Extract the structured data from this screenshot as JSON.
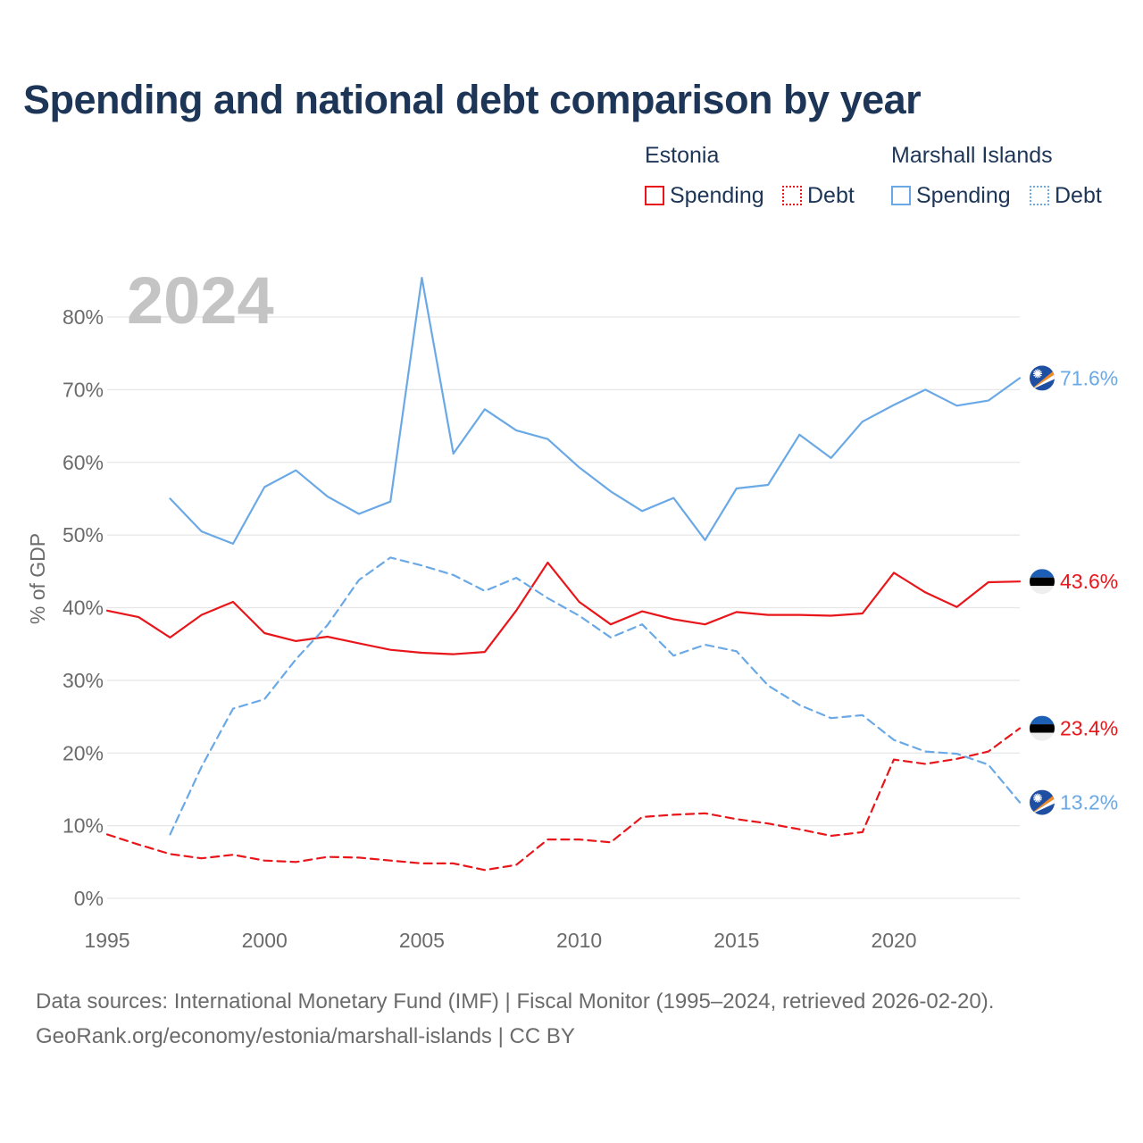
{
  "title": "Spending and national debt comparison by year",
  "legend": {
    "groups": [
      {
        "country": "Estonia",
        "items": [
          {
            "label": "Spending"
          },
          {
            "label": "Debt"
          }
        ]
      },
      {
        "country": "Marshall Islands",
        "items": [
          {
            "label": "Spending"
          },
          {
            "label": "Debt"
          }
        ]
      }
    ]
  },
  "colors": {
    "estonia": "#e8161a",
    "marshall_islands": "#6aa9e6"
  },
  "source_line1": "Data sources: International Monetary Fund (IMF) | Fiscal Monitor (1995–2024, retrieved 2026-02-20).",
  "source_line2": "GeoRank.org/economy/estonia/marshall-islands | CC BY",
  "chart_data": {
    "type": "line",
    "year_watermark": "2024",
    "ylabel": "% of GDP",
    "xlabel": "",
    "xlim": [
      1995,
      2024
    ],
    "ylim": [
      0,
      80
    ],
    "x_ticks": [
      1995,
      2000,
      2005,
      2010,
      2015,
      2020
    ],
    "y_ticks": [
      0,
      10,
      20,
      30,
      40,
      50,
      60,
      70,
      80
    ],
    "y_tick_labels": [
      "0%",
      "10%",
      "20%",
      "30%",
      "40%",
      "50%",
      "60%",
      "70%",
      "80%"
    ],
    "series": [
      {
        "name": "Estonia Spending",
        "country": "Estonia",
        "metric": "Spending",
        "style": "solid",
        "color": "#e8161a",
        "end_label": "43.6%",
        "points": [
          [
            1995,
            39.6
          ],
          [
            1996,
            38.7
          ],
          [
            1997,
            35.9
          ],
          [
            1998,
            39.0
          ],
          [
            1999,
            40.8
          ],
          [
            2000,
            36.5
          ],
          [
            2001,
            35.4
          ],
          [
            2002,
            36.0
          ],
          [
            2003,
            35.1
          ],
          [
            2004,
            34.2
          ],
          [
            2005,
            33.8
          ],
          [
            2006,
            33.6
          ],
          [
            2007,
            33.9
          ],
          [
            2008,
            39.6
          ],
          [
            2009,
            46.2
          ],
          [
            2010,
            40.8
          ],
          [
            2011,
            37.7
          ],
          [
            2012,
            39.5
          ],
          [
            2013,
            38.4
          ],
          [
            2014,
            37.7
          ],
          [
            2015,
            39.4
          ],
          [
            2016,
            39.0
          ],
          [
            2017,
            39.0
          ],
          [
            2018,
            38.9
          ],
          [
            2019,
            39.2
          ],
          [
            2020,
            44.8
          ],
          [
            2021,
            42.1
          ],
          [
            2022,
            40.1
          ],
          [
            2023,
            43.5
          ],
          [
            2024,
            43.6
          ]
        ]
      },
      {
        "name": "Estonia Debt",
        "country": "Estonia",
        "metric": "Debt",
        "style": "dashed",
        "color": "#e8161a",
        "end_label": "23.4%",
        "points": [
          [
            1995,
            8.8
          ],
          [
            1996,
            7.4
          ],
          [
            1997,
            6.1
          ],
          [
            1998,
            5.5
          ],
          [
            1999,
            6.0
          ],
          [
            2000,
            5.2
          ],
          [
            2001,
            5.0
          ],
          [
            2002,
            5.7
          ],
          [
            2003,
            5.6
          ],
          [
            2004,
            5.2
          ],
          [
            2005,
            4.8
          ],
          [
            2006,
            4.8
          ],
          [
            2007,
            3.9
          ],
          [
            2008,
            4.6
          ],
          [
            2009,
            8.1
          ],
          [
            2010,
            8.1
          ],
          [
            2011,
            7.7
          ],
          [
            2012,
            11.2
          ],
          [
            2013,
            11.5
          ],
          [
            2014,
            11.7
          ],
          [
            2015,
            10.9
          ],
          [
            2016,
            10.3
          ],
          [
            2017,
            9.5
          ],
          [
            2018,
            8.6
          ],
          [
            2019,
            9.1
          ],
          [
            2020,
            19.1
          ],
          [
            2021,
            18.5
          ],
          [
            2022,
            19.2
          ],
          [
            2023,
            20.2
          ],
          [
            2024,
            23.4
          ]
        ]
      },
      {
        "name": "Marshall Islands Spending",
        "country": "Marshall Islands",
        "metric": "Spending",
        "style": "solid",
        "color": "#6aa9e6",
        "end_label": "71.6%",
        "points": [
          [
            1997,
            55.0
          ],
          [
            1998,
            50.5
          ],
          [
            1999,
            48.8
          ],
          [
            2000,
            56.6
          ],
          [
            2001,
            58.9
          ],
          [
            2002,
            55.3
          ],
          [
            2003,
            52.9
          ],
          [
            2004,
            54.6
          ],
          [
            2005,
            85.4
          ],
          [
            2006,
            61.2
          ],
          [
            2007,
            67.3
          ],
          [
            2008,
            64.4
          ],
          [
            2009,
            63.2
          ],
          [
            2010,
            59.3
          ],
          [
            2011,
            56.0
          ],
          [
            2012,
            53.3
          ],
          [
            2013,
            55.1
          ],
          [
            2014,
            49.3
          ],
          [
            2015,
            56.4
          ],
          [
            2016,
            56.9
          ],
          [
            2017,
            63.8
          ],
          [
            2018,
            60.6
          ],
          [
            2019,
            65.6
          ],
          [
            2020,
            67.9
          ],
          [
            2021,
            70.0
          ],
          [
            2022,
            67.8
          ],
          [
            2023,
            68.5
          ],
          [
            2024,
            71.6
          ]
        ]
      },
      {
        "name": "Marshall Islands Debt",
        "country": "Marshall Islands",
        "metric": "Debt",
        "style": "dashed",
        "color": "#6aa9e6",
        "end_label": "13.2%",
        "points": [
          [
            1997,
            8.8
          ],
          [
            1998,
            18.1
          ],
          [
            1999,
            26.1
          ],
          [
            2000,
            27.4
          ],
          [
            2001,
            32.9
          ],
          [
            2002,
            37.6
          ],
          [
            2003,
            43.8
          ],
          [
            2004,
            46.9
          ],
          [
            2005,
            45.8
          ],
          [
            2006,
            44.5
          ],
          [
            2007,
            42.3
          ],
          [
            2008,
            44.1
          ],
          [
            2009,
            41.3
          ],
          [
            2010,
            38.9
          ],
          [
            2011,
            35.9
          ],
          [
            2012,
            37.7
          ],
          [
            2013,
            33.4
          ],
          [
            2014,
            34.9
          ],
          [
            2015,
            34.0
          ],
          [
            2016,
            29.3
          ],
          [
            2017,
            26.6
          ],
          [
            2018,
            24.8
          ],
          [
            2019,
            25.2
          ],
          [
            2020,
            21.8
          ],
          [
            2021,
            20.2
          ],
          [
            2022,
            19.9
          ],
          [
            2023,
            18.4
          ],
          [
            2024,
            13.2
          ]
        ]
      }
    ]
  }
}
